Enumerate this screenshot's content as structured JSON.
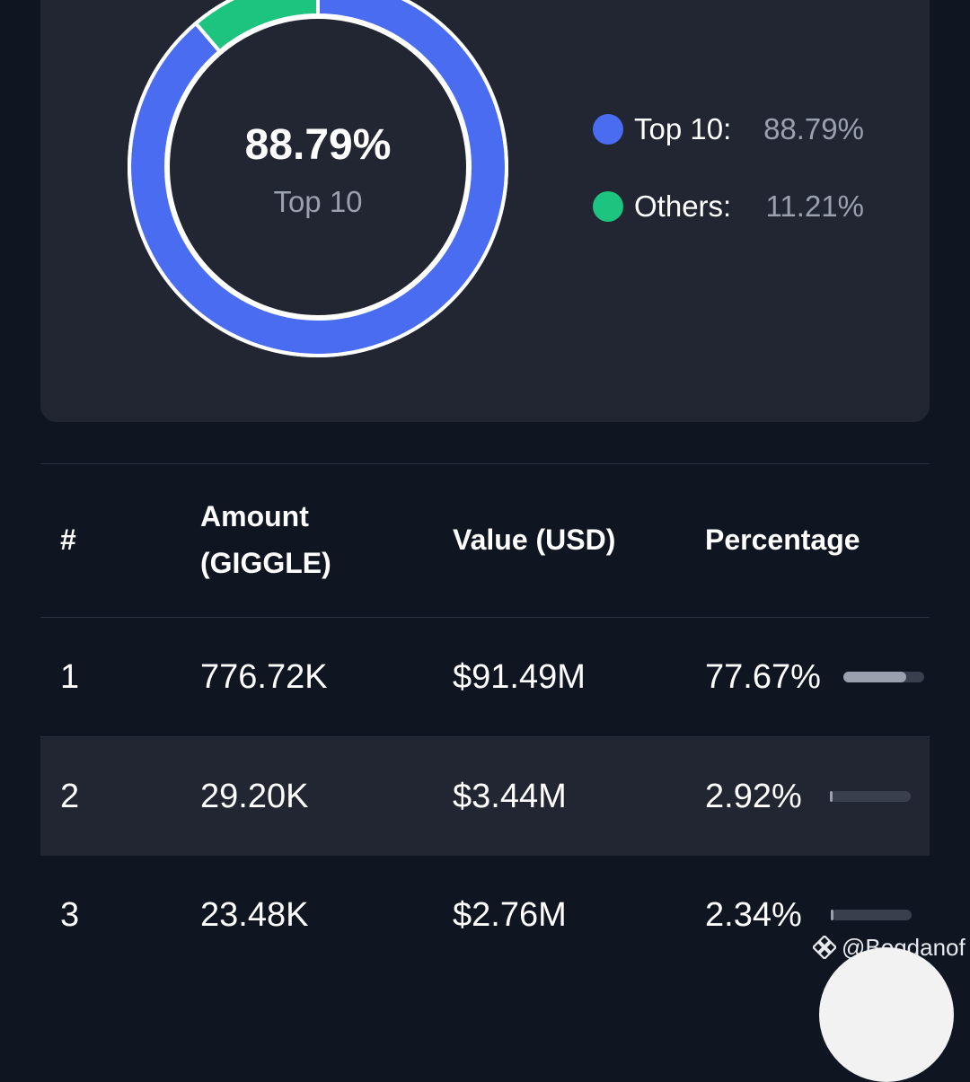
{
  "distribution": {
    "center_value": "88.79%",
    "center_label": "Top 10",
    "legend": [
      {
        "label": "Top 10:",
        "value": "88.79%",
        "color": "#4a6cf0"
      },
      {
        "label": "Others:",
        "value": "11.21%",
        "color": "#1cc47f"
      }
    ]
  },
  "chart_data": {
    "type": "pie",
    "categories": [
      "Top 10",
      "Others"
    ],
    "values": [
      88.79,
      11.21
    ],
    "colors": [
      "#4a6cf0",
      "#1cc47f"
    ],
    "title": ""
  },
  "table": {
    "headers": {
      "rank": "#",
      "amount_line1": "Amount",
      "amount_line2": "(GIGGLE)",
      "value": "Value (USD)",
      "percentage": "Percentage"
    },
    "rows": [
      {
        "rank": "1",
        "amount": "776.72K",
        "value": "$91.49M",
        "percentage": "77.67%",
        "pct": 0.7767
      },
      {
        "rank": "2",
        "amount": "29.20K",
        "value": "$3.44M",
        "percentage": "2.92%",
        "pct": 0.0292
      },
      {
        "rank": "3",
        "amount": "23.48K",
        "value": "$2.76M",
        "percentage": "2.34%",
        "pct": 0.0234
      }
    ]
  },
  "watermark": {
    "text": "@Bogdanof",
    "icon": "binance-icon"
  }
}
